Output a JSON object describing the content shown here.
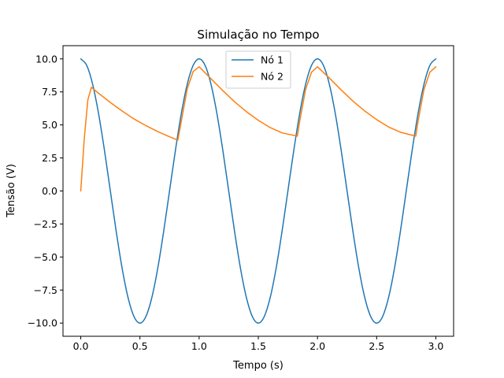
{
  "chart_data": {
    "type": "line",
    "title": "Simulação no Tempo",
    "xlabel": "Tempo (s)",
    "ylabel": "Tensão (V)",
    "xlim": [
      -0.15,
      3.15
    ],
    "ylim": [
      -11.0,
      11.0
    ],
    "xticks": [
      0.0,
      0.5,
      1.0,
      1.5,
      2.0,
      2.5,
      3.0
    ],
    "xtick_labels": [
      "0.0",
      "0.5",
      "1.0",
      "1.5",
      "2.0",
      "2.5",
      "3.0"
    ],
    "yticks": [
      -10.0,
      -7.5,
      -5.0,
      -2.5,
      0.0,
      2.5,
      5.0,
      7.5,
      10.0
    ],
    "ytick_labels": [
      "−10.0",
      "−7.5",
      "−5.0",
      "−2.5",
      "0.0",
      "2.5",
      "5.0",
      "7.5",
      "10.0"
    ],
    "grid": false,
    "legend_position": "upper center",
    "series": [
      {
        "name": "Nó 1",
        "color": "#1f77b4",
        "x": [
          0.0,
          0.05,
          0.1,
          0.15,
          0.2,
          0.25,
          0.3,
          0.35,
          0.4,
          0.45,
          0.5,
          0.55,
          0.6,
          0.65,
          0.7,
          0.75,
          0.8,
          0.85,
          0.9,
          0.95,
          1.0,
          1.05,
          1.1,
          1.15,
          1.2,
          1.25,
          1.3,
          1.35,
          1.4,
          1.45,
          1.5,
          1.55,
          1.6,
          1.65,
          1.7,
          1.75,
          1.8,
          1.85,
          1.9,
          1.95,
          2.0,
          2.05,
          2.1,
          2.15,
          2.2,
          2.25,
          2.3,
          2.35,
          2.4,
          2.45,
          2.5,
          2.55,
          2.6,
          2.65,
          2.7,
          2.75,
          2.8,
          2.85,
          2.9,
          2.95,
          3.0
        ],
        "y": [
          10.0,
          9.51,
          8.09,
          5.88,
          3.09,
          0.0,
          -3.09,
          -5.88,
          -8.09,
          -9.51,
          -10.0,
          -9.51,
          -8.09,
          -5.88,
          -3.09,
          0.0,
          3.09,
          5.88,
          8.09,
          9.51,
          10.0,
          9.51,
          8.09,
          5.88,
          3.09,
          0.0,
          -3.09,
          -5.88,
          -8.09,
          -9.51,
          -10.0,
          -9.51,
          -8.09,
          -5.88,
          -3.09,
          0.0,
          3.09,
          5.88,
          8.09,
          9.51,
          10.0,
          9.51,
          8.09,
          5.88,
          3.09,
          0.0,
          -3.09,
          -5.88,
          -8.09,
          -9.51,
          -10.0,
          -9.51,
          -8.09,
          -5.88,
          -3.09,
          0.0,
          3.09,
          5.88,
          8.09,
          9.51,
          10.0
        ]
      },
      {
        "name": "Nó 2",
        "color": "#ff7f0e",
        "x": [
          0.0,
          0.03,
          0.06,
          0.09,
          0.15,
          0.25,
          0.35,
          0.45,
          0.55,
          0.65,
          0.75,
          0.82,
          0.85,
          0.9,
          0.95,
          1.0,
          1.1,
          1.2,
          1.3,
          1.4,
          1.5,
          1.6,
          1.7,
          1.83,
          1.85,
          1.9,
          1.95,
          2.0,
          2.1,
          2.2,
          2.3,
          2.4,
          2.5,
          2.6,
          2.7,
          2.83,
          2.85,
          2.9,
          2.95,
          3.0
        ],
        "y": [
          0.0,
          4.0,
          6.9,
          7.85,
          7.4,
          6.7,
          6.05,
          5.45,
          4.95,
          4.5,
          4.1,
          3.85,
          5.3,
          7.75,
          9.05,
          9.4,
          8.5,
          7.6,
          6.75,
          6.0,
          5.35,
          4.8,
          4.4,
          4.15,
          5.3,
          7.7,
          9.0,
          9.4,
          8.55,
          7.65,
          6.8,
          6.05,
          5.4,
          4.85,
          4.45,
          4.15,
          5.3,
          7.7,
          9.0,
          9.4
        ]
      }
    ]
  }
}
